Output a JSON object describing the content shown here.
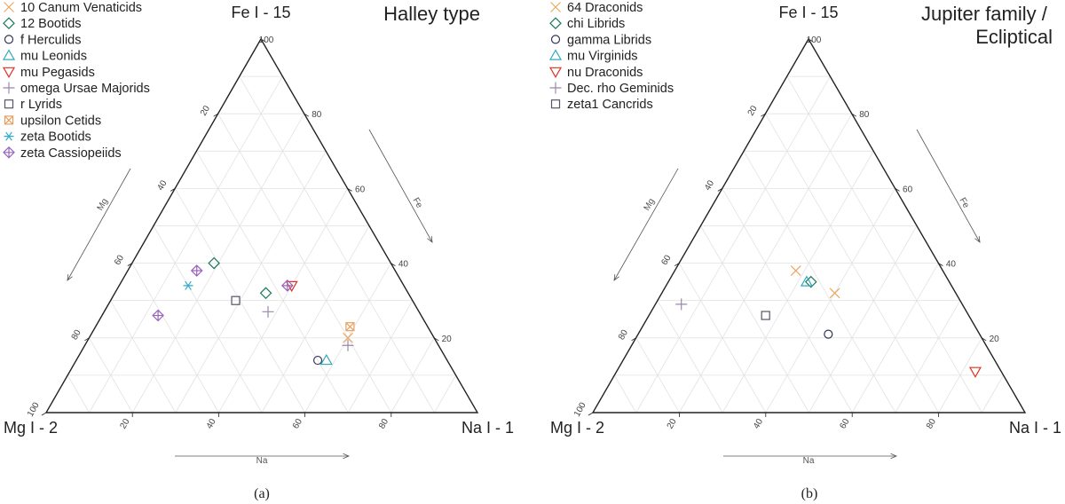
{
  "chart_data": [
    {
      "type": "ternary-scatter",
      "title": "Halley type",
      "caption": "(a)",
      "corners": {
        "top": "Fe I - 15",
        "left": "Mg I - 2",
        "right": "Na I - 1"
      },
      "axis_labels": {
        "left": "Mg",
        "right": "Fe",
        "bottom": "Na"
      },
      "ticks": {
        "left": [
          "20",
          "40",
          "60",
          "80",
          "100"
        ],
        "right": [
          "20",
          "40",
          "60",
          "80",
          "100"
        ],
        "bottom": [
          "20",
          "40",
          "60",
          "80"
        ]
      },
      "grid": true,
      "series": [
        {
          "name": "10 Canum Venaticids",
          "marker": "x",
          "color": "#e8a85f",
          "fe": 20,
          "mg": 20,
          "na": 60
        },
        {
          "name": "12 Bootids",
          "marker": "diamond",
          "color": "#1a7a5a",
          "fe": 40,
          "mg": 41,
          "na": 19
        },
        {
          "name": "f Herculids",
          "marker": "circle",
          "color": "#333355",
          "fe": 14,
          "mg": 30,
          "na": 56
        },
        {
          "name": "mu Leonids",
          "marker": "triangle-up",
          "color": "#33aabb",
          "fe": 14,
          "mg": 28,
          "na": 58
        },
        {
          "name": "mu Pegasids",
          "marker": "triangle-down",
          "color": "#dd3322",
          "fe": 34,
          "mg": 26,
          "na": 40
        },
        {
          "name": "omega Ursae Majorids",
          "marker": "plus",
          "color": "#9988aa",
          "fe": 27,
          "mg": 35,
          "na": 38
        },
        {
          "name": "omega Ursae Majorids",
          "marker": "plus",
          "color": "#9988aa",
          "fe": 18,
          "mg": 21,
          "na": 61
        },
        {
          "name": "r Lyrids",
          "marker": "square",
          "color": "#555566",
          "fe": 30,
          "mg": 41,
          "na": 29
        },
        {
          "name": "upsilon Cetids",
          "marker": "square-x",
          "color": "#e8a060",
          "fe": 23,
          "mg": 18,
          "na": 59
        },
        {
          "name": "zeta Bootids",
          "marker": "asterisk",
          "color": "#33aacc",
          "fe": 34,
          "mg": 50,
          "na": 16
        },
        {
          "name": "zeta Cassiopeiids",
          "marker": "diamond-plus",
          "color": "#9966bb",
          "fe": 38,
          "mg": 46,
          "na": 16
        },
        {
          "name": "zeta Cassiopeiids",
          "marker": "diamond-plus",
          "color": "#9966bb",
          "fe": 26,
          "mg": 61,
          "na": 13
        },
        {
          "name": "zeta Cassiopeiids",
          "marker": "diamond-plus",
          "color": "#9966bb",
          "fe": 34,
          "mg": 27,
          "na": 39
        },
        {
          "name": "12 Bootids",
          "marker": "diamond",
          "color": "#1a7a5a",
          "fe": 32,
          "mg": 33,
          "na": 35
        }
      ]
    },
    {
      "type": "ternary-scatter",
      "title": "Jupiter family /\nEcliptical",
      "caption": "(b)",
      "corners": {
        "top": "Fe I - 15",
        "left": "Mg I - 2",
        "right": "Na I - 1"
      },
      "axis_labels": {
        "left": "Mg",
        "right": "Fe",
        "bottom": "Na"
      },
      "ticks": {
        "left": [
          "20",
          "40",
          "60",
          "80",
          "100"
        ],
        "right": [
          "20",
          "40",
          "60",
          "80",
          "100"
        ],
        "bottom": [
          "20",
          "40",
          "60",
          "80"
        ]
      },
      "grid": true,
      "series": [
        {
          "name": "64 Draconids",
          "marker": "x",
          "color": "#e8a85f",
          "fe": 38,
          "mg": 34,
          "na": 28
        },
        {
          "name": "64 Draconids",
          "marker": "x",
          "color": "#e8a85f",
          "fe": 32,
          "mg": 28,
          "na": 40
        },
        {
          "name": "chi Librids",
          "marker": "diamond",
          "color": "#1a7a5a",
          "fe": 35,
          "mg": 32,
          "na": 33
        },
        {
          "name": "gamma Librids",
          "marker": "circle",
          "color": "#333355",
          "fe": 21,
          "mg": 35,
          "na": 44
        },
        {
          "name": "mu Virginids",
          "marker": "triangle-up",
          "color": "#33aabb",
          "fe": 35,
          "mg": 33,
          "na": 32
        },
        {
          "name": "nu Draconids",
          "marker": "triangle-down",
          "color": "#dd3322",
          "fe": 11,
          "mg": 6,
          "na": 83
        },
        {
          "name": "Dec. rho Geminids",
          "marker": "plus",
          "color": "#9988aa",
          "fe": 29,
          "mg": 65,
          "na": 6
        },
        {
          "name": "zeta1 Cancrids",
          "marker": "square",
          "color": "#555566",
          "fe": 26,
          "mg": 47,
          "na": 27
        }
      ]
    }
  ],
  "legend_a": [
    {
      "label": "10 Canum Venaticids",
      "marker": "x",
      "color": "#e8a85f"
    },
    {
      "label": "12 Bootids",
      "marker": "diamond",
      "color": "#1a7a5a"
    },
    {
      "label": "f Herculids",
      "marker": "circle",
      "color": "#333355"
    },
    {
      "label": "mu Leonids",
      "marker": "triangle-up",
      "color": "#33aabb"
    },
    {
      "label": "mu Pegasids",
      "marker": "triangle-down",
      "color": "#dd3322"
    },
    {
      "label": "omega Ursae Majorids",
      "marker": "plus",
      "color": "#9988aa"
    },
    {
      "label": "r Lyrids",
      "marker": "square",
      "color": "#555566"
    },
    {
      "label": "upsilon Cetids",
      "marker": "square-x",
      "color": "#e8a060"
    },
    {
      "label": "zeta Bootids",
      "marker": "asterisk",
      "color": "#33aacc"
    },
    {
      "label": "zeta Cassiopeiids",
      "marker": "diamond-plus",
      "color": "#9966bb"
    }
  ],
  "legend_b": [
    {
      "label": "64 Draconids",
      "marker": "x",
      "color": "#e8a85f"
    },
    {
      "label": "chi Librids",
      "marker": "diamond",
      "color": "#1a7a5a"
    },
    {
      "label": "gamma Librids",
      "marker": "circle",
      "color": "#333355"
    },
    {
      "label": "mu Virginids",
      "marker": "triangle-up",
      "color": "#33aabb"
    },
    {
      "label": "nu Draconids",
      "marker": "triangle-down",
      "color": "#dd3322"
    },
    {
      "label": "Dec. rho Geminids",
      "marker": "plus",
      "color": "#9988aa"
    },
    {
      "label": "zeta1 Cancrids",
      "marker": "square",
      "color": "#555566"
    }
  ]
}
